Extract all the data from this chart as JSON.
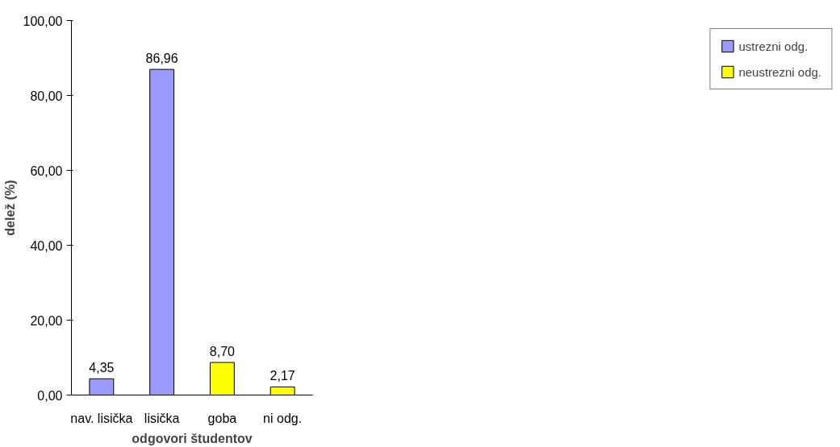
{
  "chart_data": {
    "type": "bar",
    "xlabel": "odgovori študentov",
    "ylabel": "delež (%)",
    "categories": [
      "nav. lisička",
      "lisička",
      "goba",
      "ni odg."
    ],
    "series": [
      {
        "name": "ustrezni odg.",
        "color": "#9999ff",
        "values": [
          4.35,
          86.96,
          null,
          null
        ],
        "value_labels": [
          "4,35",
          "86,96",
          null,
          null
        ]
      },
      {
        "name": "neustrezni odg.",
        "color": "#ffff00",
        "values": [
          null,
          null,
          8.7,
          2.17
        ],
        "value_labels": [
          null,
          null,
          "8,70",
          "2,17"
        ]
      }
    ],
    "ylim": [
      0,
      100
    ],
    "yticks": [
      {
        "value": 0,
        "label": "0,00"
      },
      {
        "value": 20,
        "label": "20,00"
      },
      {
        "value": 40,
        "label": "40,00"
      },
      {
        "value": 60,
        "label": "60,00"
      },
      {
        "value": 80,
        "label": "80,00"
      },
      {
        "value": 100,
        "label": "100,00"
      }
    ],
    "grid": false,
    "legend": "right"
  }
}
